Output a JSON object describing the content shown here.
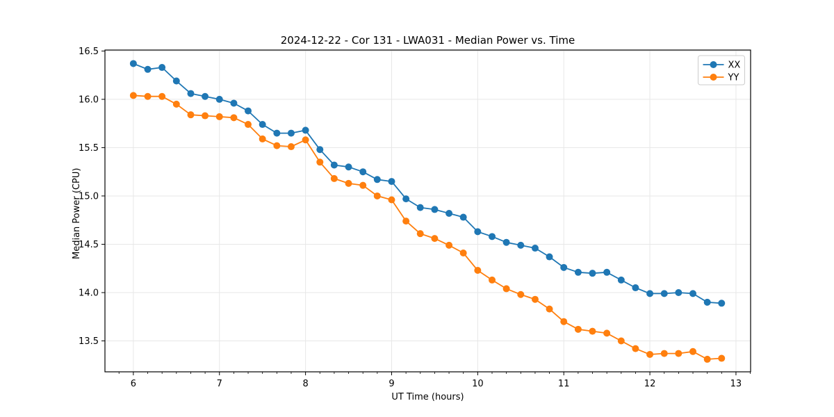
{
  "chart_data": {
    "type": "line",
    "title": "2024-12-22 - Cor 131 - LWA031 - Median Power vs. Time",
    "xlabel": "UT Time (hours)",
    "ylabel": "Median Power (CPU)",
    "xlim": [
      5.67,
      13.17
    ],
    "ylim": [
      13.18,
      16.51
    ],
    "xticks": [
      6,
      7,
      8,
      9,
      10,
      11,
      12,
      13
    ],
    "xtick_labels": [
      "6",
      "7",
      "8",
      "9",
      "10",
      "11",
      "12",
      "13"
    ],
    "yticks": [
      13.5,
      14.0,
      14.5,
      15.0,
      15.5,
      16.0,
      16.5
    ],
    "ytick_labels": [
      "13.5",
      "14.0",
      "14.5",
      "15.0",
      "15.5",
      "16.0",
      "16.5"
    ],
    "x_minor_tick_step": 0.16667,
    "grid": true,
    "legend_position": "upper right",
    "x": [
      6.0,
      6.167,
      6.333,
      6.5,
      6.667,
      6.833,
      7.0,
      7.167,
      7.333,
      7.5,
      7.667,
      7.833,
      8.0,
      8.167,
      8.333,
      8.5,
      8.667,
      8.833,
      9.0,
      9.167,
      9.333,
      9.5,
      9.667,
      9.833,
      10.0,
      10.167,
      10.333,
      10.5,
      10.667,
      10.833,
      11.0,
      11.167,
      11.333,
      11.5,
      11.667,
      11.833,
      12.0,
      12.167,
      12.333,
      12.5,
      12.667,
      12.833
    ],
    "series": [
      {
        "name": "XX",
        "color": "#1f77b4",
        "values": [
          16.37,
          16.31,
          16.33,
          16.19,
          16.06,
          16.03,
          16.0,
          15.96,
          15.88,
          15.74,
          15.65,
          15.65,
          15.68,
          15.48,
          15.32,
          15.3,
          15.25,
          15.17,
          15.15,
          14.97,
          14.88,
          14.86,
          14.82,
          14.78,
          14.63,
          14.58,
          14.52,
          14.49,
          14.46,
          14.37,
          14.26,
          14.21,
          14.2,
          14.21,
          14.13,
          14.05,
          13.99,
          13.99,
          14.0,
          13.99,
          13.9,
          13.89
        ]
      },
      {
        "name": "YY",
        "color": "#ff7f0e",
        "values": [
          16.04,
          16.03,
          16.03,
          15.95,
          15.84,
          15.83,
          15.82,
          15.81,
          15.74,
          15.59,
          15.52,
          15.51,
          15.58,
          15.35,
          15.18,
          15.13,
          15.11,
          15.0,
          14.96,
          14.74,
          14.61,
          14.56,
          14.49,
          14.41,
          14.23,
          14.13,
          14.04,
          13.98,
          13.93,
          13.83,
          13.7,
          13.62,
          13.6,
          13.58,
          13.5,
          13.42,
          13.36,
          13.37,
          13.37,
          13.39,
          13.31,
          13.32
        ]
      }
    ],
    "style": {
      "grid_color": "#e7e7e7",
      "spine_color": "#000000",
      "tick_color": "#000000",
      "legend_border_color": "#cccccc",
      "marker_radius": 5,
      "line_width": 1.8
    }
  }
}
